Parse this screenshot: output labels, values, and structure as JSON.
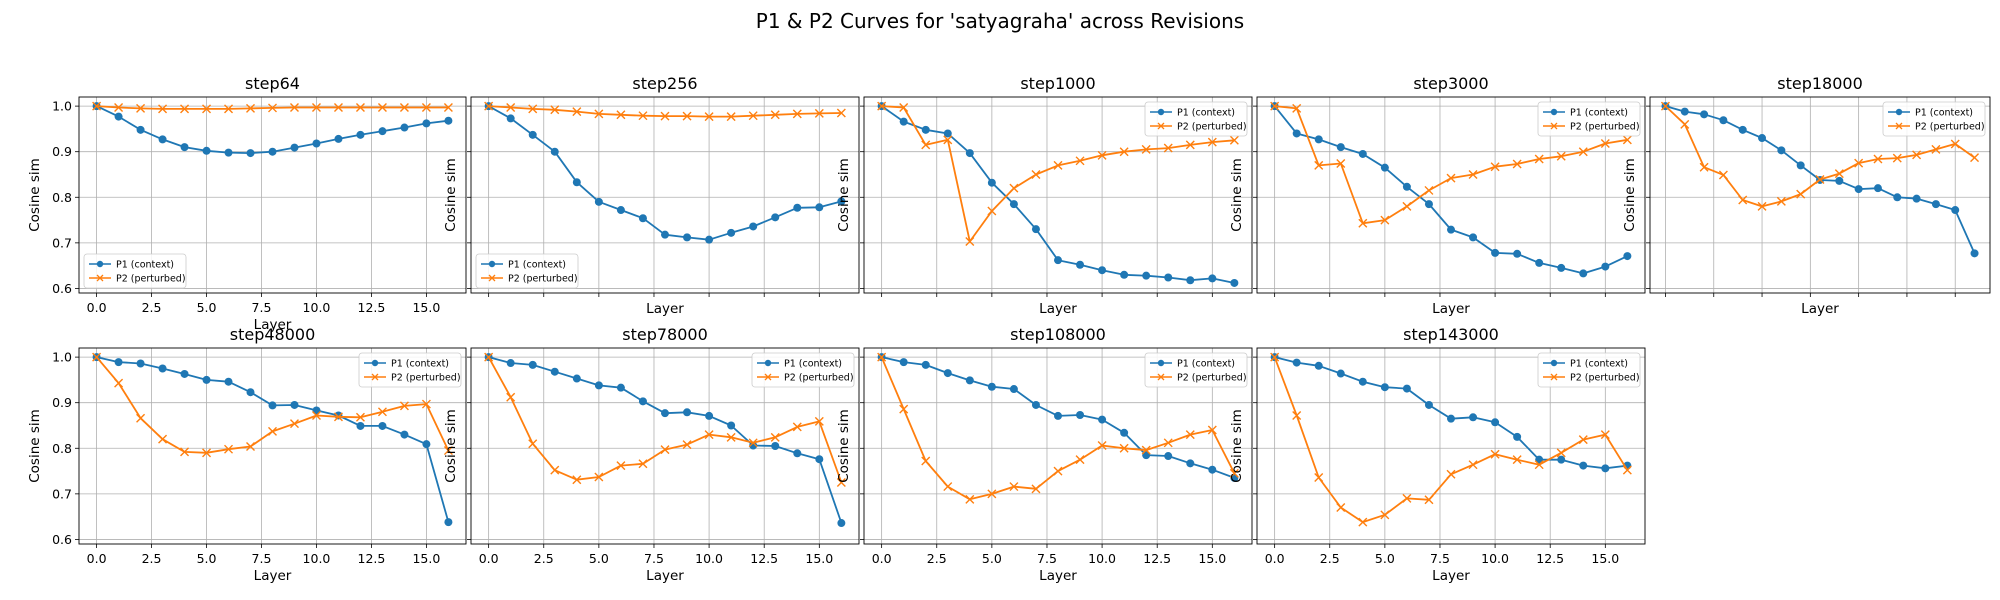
{
  "figure_title": "P1 & P2 Curves for 'satyagraha' across Revisions",
  "colors": {
    "p1": "#1f77b4",
    "p2": "#ff7f0e",
    "grid": "#b0b0b0"
  },
  "chart_data": [
    {
      "type": "line",
      "title": "step64",
      "xlabel": "Layer",
      "ylabel": "Cosine sim",
      "xlim": [
        -0.8,
        16.8
      ],
      "ylim": [
        0.59,
        1.02
      ],
      "x": [
        0,
        1,
        2,
        3,
        4,
        5,
        6,
        7,
        8,
        9,
        10,
        11,
        12,
        13,
        14,
        15,
        16
      ],
      "xticks": [
        "0.0",
        "2.5",
        "5.0",
        "7.5",
        "10.0",
        "12.5",
        "15.0"
      ],
      "yticks": [
        "0.6",
        "0.7",
        "0.8",
        "0.9",
        "1.0"
      ],
      "legend": "lower left",
      "series": [
        {
          "name": "P1 (context)",
          "marker": "circle",
          "values": [
            1.0,
            0.977,
            0.948,
            0.927,
            0.91,
            0.902,
            0.898,
            0.897,
            0.9,
            0.909,
            0.918,
            0.928,
            0.937,
            0.945,
            0.953,
            0.962,
            0.968
          ]
        },
        {
          "name": "P2 (perturbed)",
          "marker": "x",
          "values": [
            1.0,
            0.997,
            0.995,
            0.994,
            0.994,
            0.994,
            0.994,
            0.995,
            0.996,
            0.997,
            0.997,
            0.997,
            0.997,
            0.997,
            0.997,
            0.997,
            0.997
          ]
        }
      ]
    },
    {
      "type": "line",
      "title": "step256",
      "xlabel": "Layer",
      "ylabel": "Cosine sim",
      "xlim": [
        -0.8,
        16.8
      ],
      "ylim": [
        0.59,
        1.02
      ],
      "x": [
        0,
        1,
        2,
        3,
        4,
        5,
        6,
        7,
        8,
        9,
        10,
        11,
        12,
        13,
        14,
        15,
        16
      ],
      "legend": "lower left",
      "series": [
        {
          "name": "P1 (context)",
          "marker": "circle",
          "values": [
            1.0,
            0.973,
            0.937,
            0.9,
            0.833,
            0.79,
            0.772,
            0.754,
            0.718,
            0.712,
            0.707,
            0.722,
            0.736,
            0.756,
            0.777,
            0.778,
            0.791
          ]
        },
        {
          "name": "P2 (perturbed)",
          "marker": "x",
          "values": [
            1.0,
            0.997,
            0.994,
            0.992,
            0.988,
            0.983,
            0.981,
            0.979,
            0.978,
            0.978,
            0.977,
            0.977,
            0.979,
            0.981,
            0.983,
            0.984,
            0.985
          ]
        }
      ]
    },
    {
      "type": "line",
      "title": "step1000",
      "xlabel": "Layer",
      "ylabel": "Cosine sim",
      "xlim": [
        -0.8,
        16.8
      ],
      "ylim": [
        0.59,
        1.02
      ],
      "x": [
        0,
        1,
        2,
        3,
        4,
        5,
        6,
        7,
        8,
        9,
        10,
        11,
        12,
        13,
        14,
        15,
        16
      ],
      "legend": "upper right",
      "series": [
        {
          "name": "P1 (context)",
          "marker": "circle",
          "values": [
            1.0,
            0.966,
            0.948,
            0.94,
            0.897,
            0.832,
            0.785,
            0.73,
            0.662,
            0.652,
            0.64,
            0.63,
            0.628,
            0.624,
            0.618,
            0.622,
            0.612
          ]
        },
        {
          "name": "P2 (perturbed)",
          "marker": "x",
          "values": [
            1.0,
            0.997,
            0.915,
            0.926,
            0.703,
            0.77,
            0.82,
            0.85,
            0.87,
            0.88,
            0.892,
            0.9,
            0.905,
            0.908,
            0.915,
            0.921,
            0.925
          ]
        }
      ]
    },
    {
      "type": "line",
      "title": "step3000",
      "xlabel": "Layer",
      "ylabel": "Cosine sim",
      "xlim": [
        -0.8,
        16.8
      ],
      "ylim": [
        0.59,
        1.02
      ],
      "x": [
        0,
        1,
        2,
        3,
        4,
        5,
        6,
        7,
        8,
        9,
        10,
        11,
        12,
        13,
        14,
        15,
        16
      ],
      "legend": "upper right",
      "series": [
        {
          "name": "P1 (context)",
          "marker": "circle",
          "values": [
            1.0,
            0.94,
            0.927,
            0.91,
            0.895,
            0.865,
            0.823,
            0.785,
            0.729,
            0.712,
            0.678,
            0.676,
            0.656,
            0.645,
            0.633,
            0.648,
            0.671
          ]
        },
        {
          "name": "P2 (perturbed)",
          "marker": "x",
          "values": [
            1.0,
            0.995,
            0.87,
            0.874,
            0.743,
            0.75,
            0.78,
            0.815,
            0.842,
            0.85,
            0.867,
            0.873,
            0.884,
            0.89,
            0.9,
            0.918,
            0.926
          ]
        }
      ]
    },
    {
      "type": "line",
      "title": "step18000",
      "xlabel": "Layer",
      "ylabel": "Cosine sim",
      "xlim": [
        -0.8,
        16.8
      ],
      "ylim": [
        0.59,
        1.02
      ],
      "x": [
        0,
        1,
        2,
        3,
        4,
        5,
        6,
        7,
        8,
        9,
        10,
        11,
        12,
        13,
        14,
        15,
        16
      ],
      "legend": "upper right",
      "series": [
        {
          "name": "P1 (context)",
          "marker": "circle",
          "values": [
            1.0,
            0.988,
            0.982,
            0.969,
            0.948,
            0.93,
            0.903,
            0.87,
            0.838,
            0.836,
            0.818,
            0.82,
            0.8,
            0.797,
            0.785,
            0.772,
            0.677
          ]
        },
        {
          "name": "P2 (perturbed)",
          "marker": "x",
          "values": [
            1.0,
            0.96,
            0.866,
            0.849,
            0.794,
            0.78,
            0.791,
            0.807,
            0.839,
            0.852,
            0.875,
            0.884,
            0.886,
            0.893,
            0.905,
            0.917,
            0.887
          ]
        }
      ]
    },
    {
      "type": "line",
      "title": "step48000",
      "xlabel": "Layer",
      "ylabel": "Cosine sim",
      "xlim": [
        -0.8,
        16.8
      ],
      "ylim": [
        0.59,
        1.02
      ],
      "x": [
        0,
        1,
        2,
        3,
        4,
        5,
        6,
        7,
        8,
        9,
        10,
        11,
        12,
        13,
        14,
        15,
        16
      ],
      "xticks": [
        "0.0",
        "2.5",
        "5.0",
        "7.5",
        "10.0",
        "12.5",
        "15.0"
      ],
      "yticks": [
        "0.6",
        "0.7",
        "0.8",
        "0.9",
        "1.0"
      ],
      "legend": "upper right",
      "series": [
        {
          "name": "P1 (context)",
          "marker": "circle",
          "values": [
            1.0,
            0.989,
            0.986,
            0.975,
            0.963,
            0.95,
            0.946,
            0.923,
            0.894,
            0.895,
            0.883,
            0.872,
            0.849,
            0.849,
            0.83,
            0.809,
            0.638
          ]
        },
        {
          "name": "P2 (perturbed)",
          "marker": "x",
          "values": [
            1.0,
            0.943,
            0.866,
            0.82,
            0.792,
            0.79,
            0.798,
            0.804,
            0.837,
            0.854,
            0.872,
            0.869,
            0.868,
            0.88,
            0.893,
            0.897,
            0.795
          ]
        }
      ]
    },
    {
      "type": "line",
      "title": "step78000",
      "xlabel": "Layer",
      "ylabel": "Cosine sim",
      "xlim": [
        -0.8,
        16.8
      ],
      "ylim": [
        0.59,
        1.02
      ],
      "x": [
        0,
        1,
        2,
        3,
        4,
        5,
        6,
        7,
        8,
        9,
        10,
        11,
        12,
        13,
        14,
        15,
        16
      ],
      "xticks": [
        "0.0",
        "2.5",
        "5.0",
        "7.5",
        "10.0",
        "12.5",
        "15.0"
      ],
      "legend": "upper right",
      "series": [
        {
          "name": "P1 (context)",
          "marker": "circle",
          "values": [
            1.0,
            0.987,
            0.983,
            0.968,
            0.953,
            0.938,
            0.933,
            0.903,
            0.877,
            0.879,
            0.871,
            0.85,
            0.806,
            0.805,
            0.789,
            0.776,
            0.636
          ]
        },
        {
          "name": "P2 (perturbed)",
          "marker": "x",
          "values": [
            1.0,
            0.912,
            0.81,
            0.752,
            0.731,
            0.737,
            0.762,
            0.766,
            0.797,
            0.808,
            0.83,
            0.824,
            0.812,
            0.824,
            0.847,
            0.859,
            0.725
          ]
        }
      ]
    },
    {
      "type": "line",
      "title": "step108000",
      "xlabel": "Layer",
      "ylabel": "Cosine sim",
      "xlim": [
        -0.8,
        16.8
      ],
      "ylim": [
        0.59,
        1.02
      ],
      "x": [
        0,
        1,
        2,
        3,
        4,
        5,
        6,
        7,
        8,
        9,
        10,
        11,
        12,
        13,
        14,
        15,
        16
      ],
      "xticks": [
        "0.0",
        "2.5",
        "5.0",
        "7.5",
        "10.0",
        "12.5",
        "15.0"
      ],
      "legend": "upper right",
      "series": [
        {
          "name": "P1 (context)",
          "marker": "circle",
          "values": [
            1.0,
            0.989,
            0.983,
            0.965,
            0.949,
            0.935,
            0.93,
            0.895,
            0.871,
            0.873,
            0.863,
            0.834,
            0.785,
            0.783,
            0.767,
            0.753,
            0.735
          ]
        },
        {
          "name": "P2 (perturbed)",
          "marker": "x",
          "values": [
            1.0,
            0.886,
            0.772,
            0.716,
            0.688,
            0.7,
            0.716,
            0.711,
            0.75,
            0.775,
            0.806,
            0.8,
            0.796,
            0.812,
            0.83,
            0.84,
            0.745
          ]
        }
      ]
    },
    {
      "type": "line",
      "title": "step143000",
      "xlabel": "Layer",
      "ylabel": "Cosine sim",
      "xlim": [
        -0.8,
        16.8
      ],
      "ylim": [
        0.59,
        1.02
      ],
      "x": [
        0,
        1,
        2,
        3,
        4,
        5,
        6,
        7,
        8,
        9,
        10,
        11,
        12,
        13,
        14,
        15,
        16
      ],
      "xticks": [
        "0.0",
        "2.5",
        "5.0",
        "7.5",
        "10.0",
        "12.5",
        "15.0"
      ],
      "legend": "upper right",
      "series": [
        {
          "name": "P1 (context)",
          "marker": "circle",
          "values": [
            1.0,
            0.988,
            0.981,
            0.964,
            0.946,
            0.934,
            0.931,
            0.895,
            0.865,
            0.868,
            0.857,
            0.825,
            0.775,
            0.775,
            0.762,
            0.756,
            0.762
          ]
        },
        {
          "name": "P2 (perturbed)",
          "marker": "x",
          "values": [
            1.0,
            0.872,
            0.736,
            0.67,
            0.638,
            0.654,
            0.69,
            0.687,
            0.743,
            0.764,
            0.787,
            0.775,
            0.764,
            0.79,
            0.819,
            0.83,
            0.752
          ]
        }
      ]
    }
  ]
}
